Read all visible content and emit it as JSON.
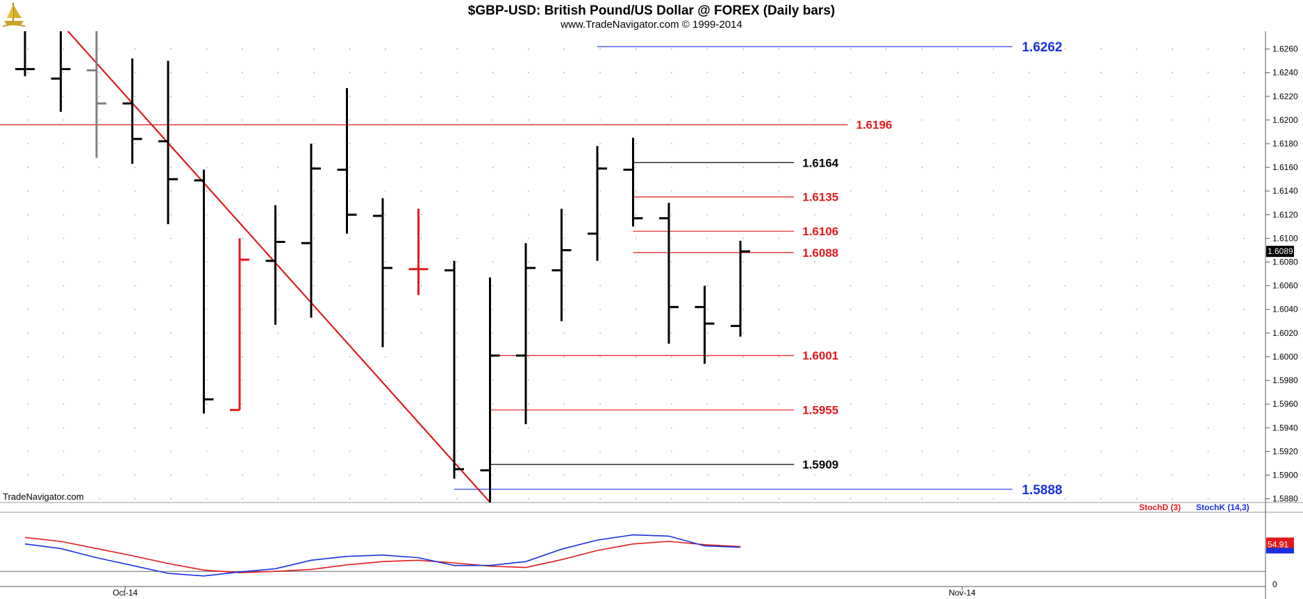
{
  "header": {
    "title": "$GBP-USD:  British Pound/US Dollar @ FOREX  (Daily bars)",
    "subtitle": "www.TradeNavigator.com © 1999-2014",
    "logo_icon": "ship-logo-icon"
  },
  "watermark": "TradeNavigator.com",
  "colors": {
    "bar_default": "#000000",
    "bar_highlight": "#e0191b",
    "bar_gray": "#7f7f7f",
    "trend_line": "#e0191b",
    "level_black": "#000000",
    "level_red": "#e0191b",
    "level_blue": "#1a2fe0",
    "stoch_d": "#e0191b",
    "stoch_k": "#1a2fe0",
    "grid_dot": "#aaaaaa",
    "axis_line": "#555555"
  },
  "chart_data": [
    {
      "type": "ohlc",
      "ylim": [
        1.5878,
        1.6275
      ],
      "yticks": [
        "1.6260",
        "1.6240",
        "1.6220",
        "1.6200",
        "1.6180",
        "1.6160",
        "1.6140",
        "1.6120",
        "1.6100",
        "1.6080",
        "1.6060",
        "1.6040",
        "1.6020",
        "1.6000",
        "1.5980",
        "1.5960",
        "1.5940",
        "1.5920",
        "1.5900",
        "1.5880"
      ],
      "xtick_labels": [
        {
          "label": "Oct-14",
          "index": 2.8
        },
        {
          "label": "Nov-14",
          "index": 26.2
        }
      ],
      "last_price": "1.6089",
      "bars": [
        {
          "index": 0,
          "open": 1.6243,
          "high": 1.6275,
          "low": 1.6237,
          "close": 1.6243,
          "color": "black"
        },
        {
          "index": 1,
          "open": 1.6235,
          "high": 1.6275,
          "low": 1.6207,
          "close": 1.6243,
          "color": "black"
        },
        {
          "index": 2,
          "open": 1.6242,
          "high": 1.6275,
          "low": 1.6168,
          "close": 1.6214,
          "color": "gray"
        },
        {
          "index": 3,
          "open": 1.6214,
          "high": 1.6252,
          "low": 1.6163,
          "close": 1.6184,
          "color": "black"
        },
        {
          "index": 4,
          "open": 1.6182,
          "high": 1.625,
          "low": 1.6112,
          "close": 1.615,
          "color": "black"
        },
        {
          "index": 5,
          "open": 1.6149,
          "high": 1.6158,
          "low": 1.5952,
          "close": 1.5964,
          "color": "black"
        },
        {
          "index": 6,
          "open": 1.5955,
          "high": 1.61,
          "low": 1.5955,
          "close": 1.6082,
          "color": "red"
        },
        {
          "index": 7,
          "open": 1.6081,
          "high": 1.6128,
          "low": 1.6027,
          "close": 1.6097,
          "color": "black"
        },
        {
          "index": 8,
          "open": 1.6096,
          "high": 1.618,
          "low": 1.6033,
          "close": 1.6159,
          "color": "black"
        },
        {
          "index": 9,
          "open": 1.6158,
          "high": 1.6227,
          "low": 1.6104,
          "close": 1.612,
          "color": "black"
        },
        {
          "index": 10,
          "open": 1.6119,
          "high": 1.6134,
          "low": 1.6008,
          "close": 1.6075,
          "color": "black"
        },
        {
          "index": 11,
          "open": 1.6074,
          "high": 1.6125,
          "low": 1.6052,
          "close": 1.6074,
          "color": "red"
        },
        {
          "index": 12,
          "open": 1.6073,
          "high": 1.6081,
          "low": 1.5897,
          "close": 1.5905,
          "color": "black"
        },
        {
          "index": 13,
          "open": 1.5904,
          "high": 1.6067,
          "low": 1.5877,
          "close": 1.6001,
          "color": "black"
        },
        {
          "index": 14,
          "open": 1.6001,
          "high": 1.6096,
          "low": 1.5943,
          "close": 1.6075,
          "color": "black"
        },
        {
          "index": 15,
          "open": 1.6073,
          "high": 1.6125,
          "low": 1.603,
          "close": 1.609,
          "color": "black"
        },
        {
          "index": 16,
          "open": 1.6104,
          "high": 1.6178,
          "low": 1.6081,
          "close": 1.6159,
          "color": "black"
        },
        {
          "index": 17,
          "open": 1.6158,
          "high": 1.6185,
          "low": 1.611,
          "close": 1.6117,
          "color": "black"
        },
        {
          "index": 18,
          "open": 1.6117,
          "high": 1.613,
          "low": 1.6011,
          "close": 1.6042,
          "color": "black"
        },
        {
          "index": 19,
          "open": 1.6042,
          "high": 1.606,
          "low": 1.5994,
          "close": 1.6028,
          "color": "black"
        },
        {
          "index": 20,
          "open": 1.6026,
          "high": 1.6098,
          "low": 1.6017,
          "close": 1.6089,
          "color": "black"
        }
      ],
      "trend_line": {
        "from_index": 1.2,
        "from_price": 1.6275,
        "to_index": 13,
        "to_price": 1.5877
      },
      "levels": [
        {
          "label": "1.6262",
          "price": 1.6262,
          "from_index": 16,
          "to_index": 27.6,
          "color": "blue"
        },
        {
          "label": "1.6196",
          "price": 1.6196,
          "from_index": -0.7,
          "to_index": 23.0,
          "color": "red"
        },
        {
          "label": "1.6164",
          "price": 1.6164,
          "from_index": 17,
          "to_index": 21.5,
          "color": "black"
        },
        {
          "label": "1.6135",
          "price": 1.6135,
          "from_index": 17,
          "to_index": 21.5,
          "color": "red"
        },
        {
          "label": "1.6106",
          "price": 1.6106,
          "from_index": 17,
          "to_index": 21.5,
          "color": "red"
        },
        {
          "label": "1.6088",
          "price": 1.6088,
          "from_index": 17,
          "to_index": 21.5,
          "color": "red"
        },
        {
          "label": "1.6001",
          "price": 1.6001,
          "from_index": 13,
          "to_index": 21.5,
          "color": "red"
        },
        {
          "label": "1.5955",
          "price": 1.5955,
          "from_index": 13,
          "to_index": 21.5,
          "color": "red"
        },
        {
          "label": "1.5909",
          "price": 1.5909,
          "from_index": 13,
          "to_index": 21.5,
          "color": "black"
        },
        {
          "label": "1.5888",
          "price": 1.5888,
          "from_index": 12,
          "to_index": 27.6,
          "color": "blue"
        }
      ]
    },
    {
      "type": "line",
      "legend": [
        "StochD (3)",
        "StochK (14,3)"
      ],
      "ylim": [
        0,
        100
      ],
      "yticks": [
        "0"
      ],
      "reference_line": 20,
      "last_value": "54.91",
      "series": [
        {
          "name": "StochD (3)",
          "color": "red",
          "x": [
            0,
            1,
            2,
            3,
            4,
            5,
            6,
            7,
            8,
            9,
            10,
            11,
            12,
            13,
            14,
            15,
            16,
            17,
            18,
            19,
            20
          ],
          "values": [
            72,
            66,
            55,
            44,
            32,
            22,
            18,
            20,
            23,
            30,
            35,
            37,
            33,
            28,
            26,
            38,
            52,
            62,
            66,
            61,
            58
          ]
        },
        {
          "name": "StochK (14,3)",
          "color": "blue",
          "x": [
            0,
            1,
            2,
            3,
            4,
            5,
            6,
            7,
            8,
            9,
            10,
            11,
            12,
            13,
            14,
            15,
            16,
            17,
            18,
            19,
            20
          ],
          "values": [
            62,
            55,
            41,
            29,
            17,
            13,
            19,
            24,
            37,
            43,
            45,
            41,
            29,
            29,
            35,
            54,
            68,
            76,
            74,
            59,
            57
          ]
        }
      ]
    }
  ]
}
